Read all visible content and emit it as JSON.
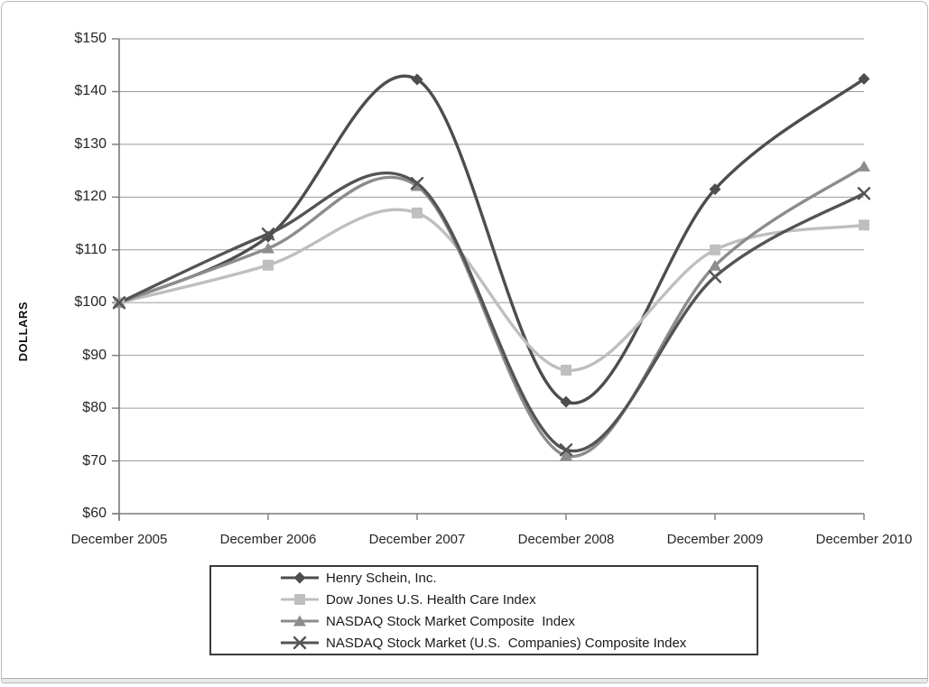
{
  "figure": {
    "background": "#ffffff",
    "frame_border_color": "#b9b9b9",
    "gridline_color": "#9b9b9b",
    "axis_color": "#7a7a7a",
    "text_color": "#262626",
    "legend_border_color": "#3a3a3a"
  },
  "chart_data": {
    "type": "line",
    "title": "",
    "xlabel": "",
    "ylabel": "DOLLARS",
    "ylim": [
      60,
      150
    ],
    "y_tick_step": 10,
    "y_tick_labels": [
      "$60",
      "$70",
      "$80",
      "$90",
      "$100",
      "$110",
      "$120",
      "$130",
      "$140",
      "$150"
    ],
    "grid": "horizontal",
    "legend_position": "bottom",
    "line_style": "smooth",
    "categories": [
      "December 2005",
      "December 2006",
      "December 2007",
      "December 2008",
      "December 2009",
      "December 2010"
    ],
    "series": [
      {
        "name": "Henry Schein, Inc.",
        "marker": "diamond",
        "color": "#4d4d4d",
        "values": [
          100,
          112.5,
          142.3,
          81.2,
          121.5,
          142.4
        ]
      },
      {
        "name": "Dow Jones U.S. Health Care Index",
        "marker": "square",
        "color": "#bfbfbf",
        "values": [
          100,
          107.1,
          117.0,
          87.2,
          110.0,
          114.7
        ]
      },
      {
        "name": "NASDAQ Stock Market Composite  Index",
        "marker": "triangle",
        "color": "#8c8c8c",
        "values": [
          100,
          110.3,
          122.1,
          71.0,
          107.0,
          125.8
        ]
      },
      {
        "name": "NASDAQ Stock Market (U.S.  Companies) Composite Index",
        "marker": "x",
        "color": "#545454",
        "values": [
          100,
          113.0,
          122.6,
          72.1,
          104.9,
          120.7
        ]
      }
    ]
  }
}
